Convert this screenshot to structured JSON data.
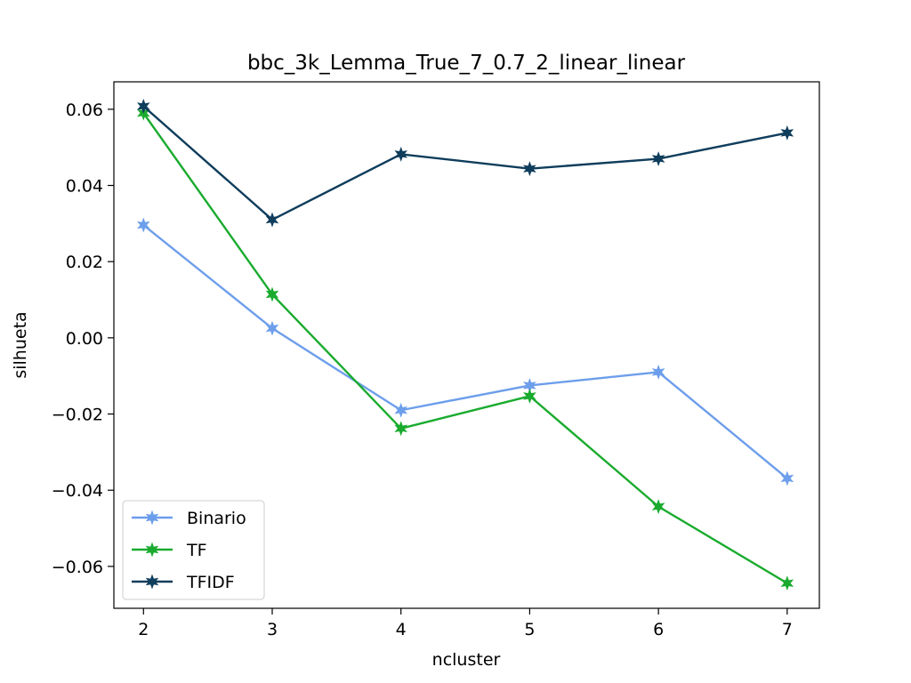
{
  "chart_data": {
    "type": "line",
    "title": "bbc_3k_Lemma_True_7_0.7_2_linear_linear",
    "xlabel": "ncluster",
    "ylabel": "silhueta",
    "x": [
      2,
      3,
      4,
      5,
      6,
      7
    ],
    "xlim": [
      1.77,
      7.25
    ],
    "ylim": [
      -0.071,
      0.0672
    ],
    "xticks": [
      2,
      3,
      4,
      5,
      6,
      7
    ],
    "yticks": [
      0.06,
      0.04,
      0.02,
      0.0,
      -0.02,
      -0.04,
      -0.06
    ],
    "ytick_labels": [
      "0.06",
      "0.04",
      "0.02",
      "0.00",
      "−0.02",
      "−0.04",
      "−0.06"
    ],
    "legend_position": "lower-left",
    "grid": false,
    "series": [
      {
        "name": "Binario",
        "color": "#6d9eeb",
        "values": [
          0.0296,
          0.0025,
          -0.019,
          -0.0125,
          -0.009,
          -0.0369
        ]
      },
      {
        "name": "TF",
        "color": "#1aab2e",
        "values": [
          0.059,
          0.0114,
          -0.0238,
          -0.0153,
          -0.0443,
          -0.0644
        ]
      },
      {
        "name": "TFIDF",
        "color": "#0f3d5c",
        "values": [
          0.0608,
          0.031,
          0.0482,
          0.0444,
          0.047,
          0.0538
        ]
      }
    ]
  }
}
